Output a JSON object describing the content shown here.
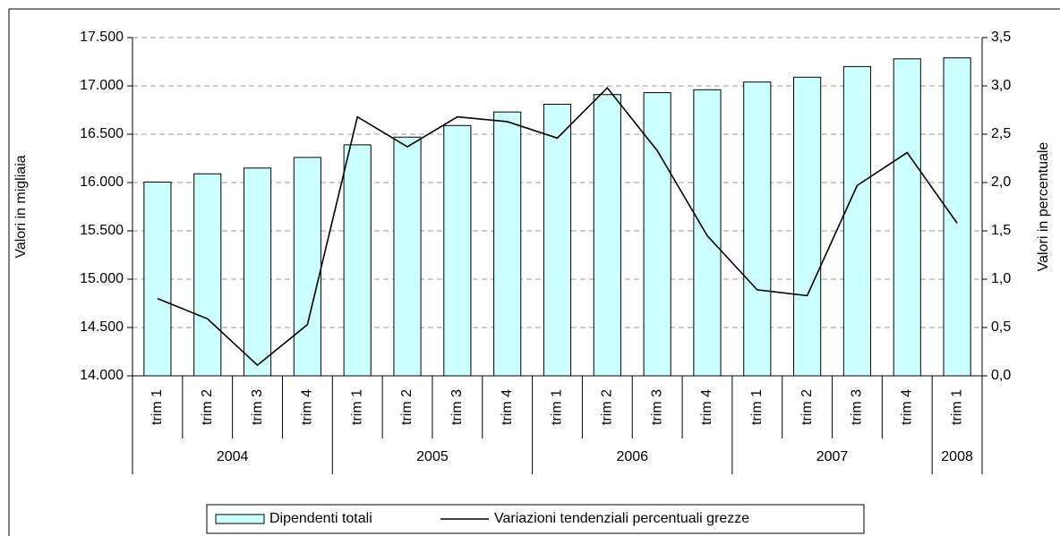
{
  "chart_data": {
    "type": "bar",
    "y_label": "Valori in migliaia",
    "y2_label": "Valori in percentuale",
    "groups": [
      {
        "label": "2004",
        "categories": [
          "trim 1",
          "trim 2",
          "trim 3",
          "trim 4"
        ]
      },
      {
        "label": "2005",
        "categories": [
          "trim 1",
          "trim 2",
          "trim 3",
          "trim 4"
        ]
      },
      {
        "label": "2006",
        "categories": [
          "trim 1",
          "trim 2",
          "trim 3",
          "trim 4"
        ]
      },
      {
        "label": "2007",
        "categories": [
          "trim 1",
          "trim 2",
          "trim 3",
          "trim 4"
        ]
      },
      {
        "label": "2008",
        "categories": [
          "trim 1"
        ]
      }
    ],
    "series": [
      {
        "name": "Dipendenti totali",
        "type": "bar",
        "color": "#ccffff",
        "values": [
          16005,
          16090,
          16150,
          16260,
          16390,
          16470,
          16590,
          16730,
          16810,
          16910,
          16930,
          16960,
          17040,
          17090,
          17200,
          17280,
          17290
        ]
      },
      {
        "name": "Variazioni tendenziali percentuali grezze",
        "type": "line",
        "axis": "y2",
        "color": "#000000",
        "values": [
          0.8,
          0.59,
          0.11,
          0.53,
          2.68,
          2.37,
          2.68,
          2.63,
          2.46,
          2.98,
          2.33,
          1.45,
          0.89,
          0.83,
          1.97,
          2.31,
          1.58
        ]
      }
    ],
    "ylim": [
      14000,
      17500
    ],
    "yticks": [
      {
        "value": 14000,
        "label": "14.000"
      },
      {
        "value": 14500,
        "label": "14.500"
      },
      {
        "value": 15000,
        "label": "15.000"
      },
      {
        "value": 15500,
        "label": "15.500"
      },
      {
        "value": 16000,
        "label": "16.000"
      },
      {
        "value": 16500,
        "label": "16.500"
      },
      {
        "value": 17000,
        "label": "17.000"
      },
      {
        "value": 17500,
        "label": "17.500"
      }
    ],
    "y2lim": [
      0,
      3.5
    ],
    "y2ticks": [
      {
        "value": 0,
        "label": "0,0"
      },
      {
        "value": 0.5,
        "label": "0,5"
      },
      {
        "value": 1,
        "label": "1,0"
      },
      {
        "value": 1.5,
        "label": "1,5"
      },
      {
        "value": 2,
        "label": "2,0"
      },
      {
        "value": 2.5,
        "label": "2,5"
      },
      {
        "value": 3,
        "label": "3,0"
      },
      {
        "value": 3.5,
        "label": "3,5"
      }
    ],
    "grid": true
  }
}
